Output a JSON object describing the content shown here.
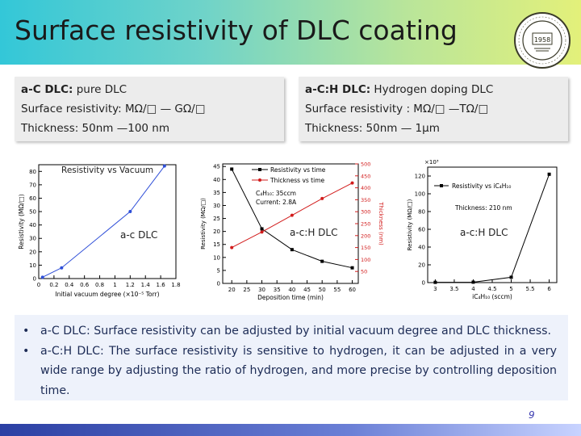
{
  "title": "Surface resistivity of DLC coating",
  "logo": {
    "text": "1958"
  },
  "left_box": {
    "line1_bold": "a-C DLC:",
    "line1_rest": " pure DLC",
    "line2": "Surface resistivity: MΩ/□ — GΩ/□",
    "line3": "Thickness: 50nm —100 nm"
  },
  "right_box": {
    "line1_bold": "a-C:H DLC:",
    "line1_rest": " Hydrogen doping DLC",
    "line2": "Surface resistivity : MΩ/□ —TΩ/□",
    "line3": "Thickness: 50nm — 1μm"
  },
  "chart_data": [
    {
      "type": "line",
      "title": "Resistivity vs Vacuum",
      "annotation": "a-c DLC",
      "xlabel": "Initial vacuum degree (×10⁻⁵ Torr)",
      "ylabel": "Resistivity (MΩ/□)",
      "x_ticks": [
        "0",
        "0.2",
        "0.4",
        "0.6",
        "0.8",
        "1",
        "1.2",
        "1.4",
        "1.6",
        "1.8"
      ],
      "y_ticks": [
        "0",
        "10",
        "20",
        "30",
        "40",
        "50",
        "60",
        "70",
        "80"
      ],
      "xlim": [
        0,
        1.8
      ],
      "ylim": [
        0,
        85
      ],
      "x": [
        0.05,
        0.3,
        1.2,
        1.65
      ],
      "y": [
        1,
        8,
        50,
        84
      ]
    },
    {
      "type": "line",
      "annotation": "a-c:H DLC",
      "legend": [
        "Resistivity vs time",
        "Thickness vs time"
      ],
      "conditions": [
        "C₄H₁₀: 35ccm",
        "Current: 2.8A"
      ],
      "xlabel": "Deposition time (min)",
      "ylabel": "Resistivity (MΩ/□)",
      "y2label": "Thickness (nm)",
      "x_ticks": [
        "20",
        "25",
        "30",
        "35",
        "40",
        "45",
        "50",
        "55",
        "60"
      ],
      "y_ticks": [
        "0",
        "5",
        "10",
        "15",
        "20",
        "25",
        "30",
        "35",
        "40",
        "45"
      ],
      "y2_ticks": [
        "50",
        "100",
        "150",
        "200",
        "250",
        "300",
        "350",
        "400",
        "450",
        "500"
      ],
      "xlim": [
        17,
        62
      ],
      "ylim": [
        0,
        46
      ],
      "y2lim": [
        0,
        500
      ],
      "series": [
        {
          "name": "Resistivity vs time",
          "x": [
            20,
            30,
            40,
            50,
            60
          ],
          "y": [
            44,
            21,
            13,
            8.5,
            6
          ]
        },
        {
          "name": "Thickness vs time",
          "x": [
            20,
            30,
            40,
            50,
            60
          ],
          "y": [
            150,
            215,
            285,
            355,
            420
          ]
        }
      ]
    },
    {
      "type": "line",
      "annotation": "a-c:H DLC",
      "legend": [
        "Resistivity vs iC₄H₁₀"
      ],
      "conditions": [
        "Thickness: 210 nm"
      ],
      "multiplier": "×10³",
      "xlabel": "iC₄H₁₀ (sccm)",
      "ylabel": "Resistivity (MΩ/□)",
      "x_ticks": [
        "3",
        "3.5",
        "4",
        "4.5",
        "5",
        "5.5",
        "6"
      ],
      "y_ticks": [
        "0",
        "20",
        "40",
        "60",
        "80",
        "100",
        "120"
      ],
      "xlim": [
        2.8,
        6.2
      ],
      "ylim": [
        0,
        130
      ],
      "x": [
        3,
        4,
        5,
        6
      ],
      "y": [
        0.3,
        0.5,
        6,
        122
      ]
    }
  ],
  "bullets": [
    "a-C DLC: Surface resistivity can be adjusted by initial vacuum degree and DLC thickness.",
    "a-C:H DLC: The surface resistivity is sensitive to hydrogen, it can be adjusted in a very wide range by adjusting the ratio of hydrogen, and more precise by controlling deposition time."
  ],
  "bullet_marker": "•",
  "page_number": "9"
}
